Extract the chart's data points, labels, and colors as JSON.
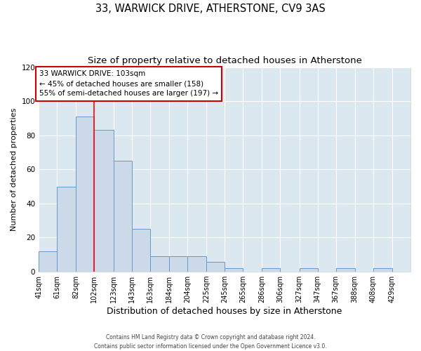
{
  "title": "33, WARWICK DRIVE, ATHERSTONE, CV9 3AS",
  "subtitle": "Size of property relative to detached houses in Atherstone",
  "xlabel": "Distribution of detached houses by size in Atherstone",
  "ylabel": "Number of detached properties",
  "bar_heights": [
    12,
    50,
    91,
    83,
    65,
    25,
    9,
    9,
    9,
    6,
    2,
    0,
    2,
    0,
    2,
    0,
    2,
    0,
    2,
    0
  ],
  "bin_edges": [
    41,
    61,
    82,
    102,
    123,
    143,
    163,
    184,
    204,
    225,
    245,
    265,
    286,
    306,
    327,
    347,
    367,
    388,
    408,
    429,
    449
  ],
  "bar_color": "#ccd9e8",
  "bar_edgecolor": "#6699cc",
  "red_line_x": 102,
  "ylim": [
    0,
    120
  ],
  "yticks": [
    0,
    20,
    40,
    60,
    80,
    100,
    120
  ],
  "annotation_lines": [
    "33 WARWICK DRIVE: 103sqm",
    "← 45% of detached houses are smaller (158)",
    "55% of semi-detached houses are larger (197) →"
  ],
  "annotation_box_color": "#ffffff",
  "annotation_box_edgecolor": "#cc0000",
  "footer_line1": "Contains HM Land Registry data © Crown copyright and database right 2024.",
  "footer_line2": "Contains public sector information licensed under the Open Government Licence v3.0.",
  "background_color": "#ffffff",
  "plot_bg_color": "#dce8f0",
  "grid_color": "#ffffff",
  "title_fontsize": 10.5,
  "subtitle_fontsize": 9.5,
  "xlabel_fontsize": 9,
  "ylabel_fontsize": 8,
  "tick_label_fontsize": 7,
  "annotation_fontsize": 7.5,
  "footer_fontsize": 5.5
}
